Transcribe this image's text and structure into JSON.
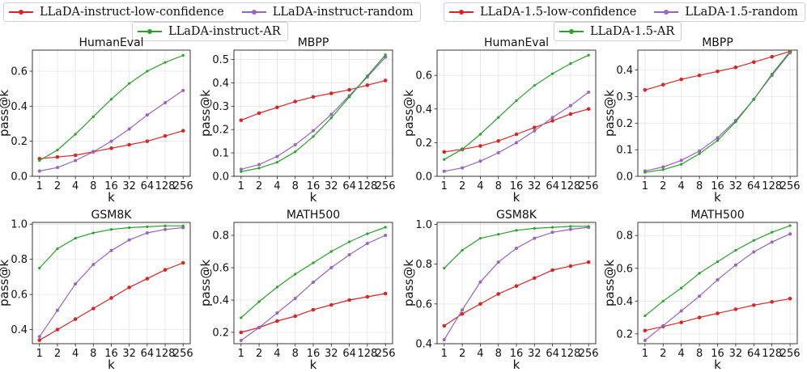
{
  "colors": {
    "low_confidence": "#d62728",
    "random": "#9467bd",
    "ar": "#2ca02c"
  },
  "legends": [
    {
      "items": [
        "LLaDA-instruct-low-confidence",
        "LLaDA-instruct-random",
        "LLaDA-instruct-AR"
      ]
    },
    {
      "items": [
        "LLaDA-1.5-low-confidence",
        "LLaDA-1.5-random",
        "LLaDA-1.5-AR"
      ]
    }
  ],
  "chart_data": [
    {
      "type": "line",
      "title": "HumanEval",
      "xlabel": "k",
      "ylabel": "pass@k",
      "categories": [
        "1",
        "2",
        "4",
        "8",
        "16",
        "32",
        "64",
        "128",
        "256"
      ],
      "ylim": [
        0,
        0.72
      ],
      "yticks": [
        0.0,
        0.2,
        0.4,
        0.6
      ],
      "yticklabels": [
        "0.0",
        "0.2",
        "0.4",
        "0.6"
      ],
      "series": [
        {
          "name": "LLaDA-instruct-low-confidence",
          "values": [
            0.1,
            0.11,
            0.12,
            0.14,
            0.16,
            0.18,
            0.2,
            0.23,
            0.26
          ]
        },
        {
          "name": "LLaDA-instruct-random",
          "values": [
            0.03,
            0.05,
            0.09,
            0.14,
            0.2,
            0.27,
            0.35,
            0.42,
            0.49
          ]
        },
        {
          "name": "LLaDA-instruct-AR",
          "values": [
            0.09,
            0.15,
            0.24,
            0.34,
            0.44,
            0.53,
            0.6,
            0.65,
            0.69
          ]
        }
      ]
    },
    {
      "type": "line",
      "title": "MBPP",
      "xlabel": "k",
      "ylabel": "pass@k",
      "categories": [
        "1",
        "2",
        "4",
        "8",
        "16",
        "32",
        "64",
        "128",
        "256"
      ],
      "ylim": [
        0,
        0.54
      ],
      "yticks": [
        0.0,
        0.1,
        0.2,
        0.3,
        0.4,
        0.5
      ],
      "yticklabels": [
        "0.0",
        "0.1",
        "0.2",
        "0.3",
        "0.4",
        "0.5"
      ],
      "series": [
        {
          "name": "LLaDA-instruct-low-confidence",
          "values": [
            0.24,
            0.27,
            0.295,
            0.32,
            0.34,
            0.355,
            0.37,
            0.39,
            0.41
          ]
        },
        {
          "name": "LLaDA-instruct-random",
          "values": [
            0.03,
            0.05,
            0.085,
            0.135,
            0.195,
            0.265,
            0.345,
            0.425,
            0.51
          ]
        },
        {
          "name": "LLaDA-instruct-AR",
          "values": [
            0.02,
            0.035,
            0.06,
            0.105,
            0.17,
            0.25,
            0.34,
            0.43,
            0.52
          ]
        }
      ]
    },
    {
      "type": "line",
      "title": "HumanEval",
      "xlabel": "k",
      "ylabel": "pass@k",
      "categories": [
        "1",
        "2",
        "4",
        "8",
        "16",
        "32",
        "64",
        "128",
        "256"
      ],
      "ylim": [
        0,
        0.75
      ],
      "yticks": [
        0.0,
        0.2,
        0.4,
        0.6
      ],
      "yticklabels": [
        "0.0",
        "0.2",
        "0.4",
        "0.6"
      ],
      "series": [
        {
          "name": "LLaDA-1.5-low-confidence",
          "values": [
            0.145,
            0.16,
            0.18,
            0.21,
            0.25,
            0.29,
            0.33,
            0.37,
            0.4
          ]
        },
        {
          "name": "LLaDA-1.5-random",
          "values": [
            0.03,
            0.05,
            0.09,
            0.14,
            0.2,
            0.27,
            0.35,
            0.42,
            0.5
          ]
        },
        {
          "name": "LLaDA-1.5-AR",
          "values": [
            0.1,
            0.16,
            0.25,
            0.35,
            0.45,
            0.54,
            0.61,
            0.67,
            0.72
          ]
        }
      ]
    },
    {
      "type": "line",
      "title": "MBPP",
      "xlabel": "k",
      "ylabel": "pass@k",
      "categories": [
        "1",
        "2",
        "4",
        "8",
        "16",
        "32",
        "64",
        "128",
        "256"
      ],
      "ylim": [
        0,
        0.475
      ],
      "yticks": [
        0.0,
        0.1,
        0.2,
        0.3,
        0.4
      ],
      "yticklabels": [
        "0.0",
        "0.1",
        "0.2",
        "0.3",
        "0.4"
      ],
      "series": [
        {
          "name": "LLaDA-1.5-low-confidence",
          "values": [
            0.325,
            0.345,
            0.365,
            0.38,
            0.395,
            0.41,
            0.43,
            0.45,
            0.47
          ]
        },
        {
          "name": "LLaDA-1.5-random",
          "values": [
            0.02,
            0.035,
            0.06,
            0.095,
            0.145,
            0.21,
            0.29,
            0.38,
            0.465
          ]
        },
        {
          "name": "LLaDA-1.5-AR",
          "values": [
            0.015,
            0.025,
            0.045,
            0.085,
            0.135,
            0.205,
            0.29,
            0.385,
            0.47
          ]
        }
      ]
    },
    {
      "type": "line",
      "title": "GSM8K",
      "xlabel": "k",
      "ylabel": "pass@k",
      "categories": [
        "1",
        "2",
        "4",
        "8",
        "16",
        "32",
        "64",
        "128",
        "256"
      ],
      "ylim": [
        0.32,
        1.01
      ],
      "yticks": [
        0.4,
        0.6,
        0.8,
        1.0
      ],
      "yticklabels": [
        "0.4",
        "0.6",
        "0.8",
        "1.0"
      ],
      "series": [
        {
          "name": "LLaDA-instruct-low-confidence",
          "values": [
            0.34,
            0.4,
            0.46,
            0.52,
            0.58,
            0.64,
            0.69,
            0.74,
            0.78
          ]
        },
        {
          "name": "LLaDA-instruct-random",
          "values": [
            0.36,
            0.51,
            0.66,
            0.77,
            0.85,
            0.91,
            0.95,
            0.97,
            0.98
          ]
        },
        {
          "name": "LLaDA-instruct-AR",
          "values": [
            0.75,
            0.86,
            0.92,
            0.95,
            0.97,
            0.98,
            0.985,
            0.99,
            0.99
          ]
        }
      ]
    },
    {
      "type": "line",
      "title": "MATH500",
      "xlabel": "k",
      "ylabel": "pass@k",
      "categories": [
        "1",
        "2",
        "4",
        "8",
        "16",
        "32",
        "64",
        "128",
        "256"
      ],
      "ylim": [
        0.13,
        0.88
      ],
      "yticks": [
        0.2,
        0.4,
        0.6,
        0.8
      ],
      "yticklabels": [
        "0.2",
        "0.4",
        "0.6",
        "0.8"
      ],
      "series": [
        {
          "name": "LLaDA-instruct-low-confidence",
          "values": [
            0.2,
            0.23,
            0.27,
            0.3,
            0.34,
            0.37,
            0.4,
            0.42,
            0.44
          ]
        },
        {
          "name": "LLaDA-instruct-random",
          "values": [
            0.15,
            0.23,
            0.32,
            0.41,
            0.51,
            0.6,
            0.68,
            0.75,
            0.8
          ]
        },
        {
          "name": "LLaDA-instruct-AR",
          "values": [
            0.29,
            0.39,
            0.48,
            0.56,
            0.63,
            0.7,
            0.76,
            0.81,
            0.85
          ]
        }
      ]
    },
    {
      "type": "line",
      "title": "GSM8K",
      "xlabel": "k",
      "ylabel": "pass@k",
      "categories": [
        "1",
        "2",
        "4",
        "8",
        "16",
        "32",
        "64",
        "128",
        "256"
      ],
      "ylim": [
        0.4,
        1.01
      ],
      "yticks": [
        0.4,
        0.6,
        0.8,
        1.0
      ],
      "yticklabels": [
        "0.4",
        "0.6",
        "0.8",
        "1.0"
      ],
      "series": [
        {
          "name": "LLaDA-1.5-low-confidence",
          "values": [
            0.49,
            0.55,
            0.6,
            0.65,
            0.69,
            0.73,
            0.77,
            0.79,
            0.81
          ]
        },
        {
          "name": "LLaDA-1.5-random",
          "values": [
            0.42,
            0.57,
            0.71,
            0.81,
            0.88,
            0.93,
            0.96,
            0.975,
            0.985
          ]
        },
        {
          "name": "LLaDA-1.5-AR",
          "values": [
            0.78,
            0.87,
            0.93,
            0.95,
            0.97,
            0.98,
            0.985,
            0.99,
            0.99
          ]
        }
      ]
    },
    {
      "type": "line",
      "title": "MATH500",
      "xlabel": "k",
      "ylabel": "pass@k",
      "categories": [
        "1",
        "2",
        "4",
        "8",
        "16",
        "32",
        "64",
        "128",
        "256"
      ],
      "ylim": [
        0.14,
        0.88
      ],
      "yticks": [
        0.2,
        0.4,
        0.6,
        0.8
      ],
      "yticklabels": [
        "0.2",
        "0.4",
        "0.6",
        "0.8"
      ],
      "series": [
        {
          "name": "LLaDA-1.5-low-confidence",
          "values": [
            0.22,
            0.245,
            0.27,
            0.3,
            0.325,
            0.35,
            0.375,
            0.395,
            0.415
          ]
        },
        {
          "name": "LLaDA-1.5-random",
          "values": [
            0.16,
            0.25,
            0.34,
            0.43,
            0.53,
            0.62,
            0.7,
            0.76,
            0.81
          ]
        },
        {
          "name": "LLaDA-1.5-AR",
          "values": [
            0.31,
            0.4,
            0.48,
            0.57,
            0.64,
            0.71,
            0.77,
            0.82,
            0.86
          ]
        }
      ]
    }
  ]
}
